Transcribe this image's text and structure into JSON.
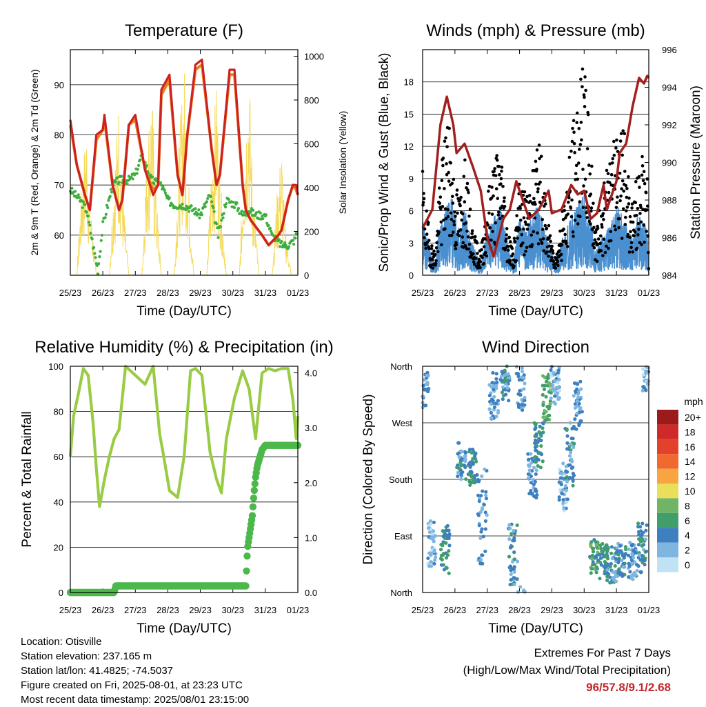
{
  "colors": {
    "temp_2m": "#cc2222",
    "temp_9m": "#ef7d1a",
    "dewpoint": "#3fae3f",
    "solar": "#f5da5a",
    "wind_sonic": "#4a90d0",
    "gust": "#000000",
    "pressure": "#a31f1f",
    "rh": "#99cc44",
    "precip": "#4cb84c",
    "grid": "#000000"
  },
  "time_ticks": [
    "25/23",
    "26/23",
    "27/23",
    "28/23",
    "29/23",
    "30/23",
    "31/23",
    "01/23"
  ],
  "chart_data": [
    {
      "id": "temperature",
      "type": "line",
      "title": "Temperature (F)",
      "xlabel": "Time (Day/UTC)",
      "ylabel_left": "2m & 9m T (Red, Orange) & 2m Td (Green)",
      "ylabel_right": "Solar Insolation (Yellow)",
      "x_ticks": [
        "25/23",
        "26/23",
        "27/23",
        "28/23",
        "29/23",
        "30/23",
        "31/23",
        "01/23"
      ],
      "x_range_days": [
        0,
        7
      ],
      "ylim": [
        52,
        97
      ],
      "yticks": [
        60,
        70,
        80,
        90
      ],
      "ylim_right": [
        0,
        1030
      ],
      "yticks_right": [
        0,
        200,
        400,
        600,
        800,
        1000
      ],
      "grid": true,
      "series": [
        {
          "name": "2m T",
          "days": [
            0.0,
            0.2,
            0.45,
            0.6,
            0.8,
            1.0,
            1.05,
            1.3,
            1.5,
            1.6,
            1.8,
            2.0,
            2.3,
            2.55,
            2.7,
            2.8,
            3.05,
            3.3,
            3.45,
            3.6,
            3.85,
            4.05,
            4.35,
            4.5,
            4.6,
            4.9,
            5.05,
            5.3,
            5.4,
            5.55,
            5.9,
            6.1,
            6.4,
            6.5,
            6.7,
            6.85,
            6.95,
            7.0
          ],
          "values": [
            83,
            74,
            68,
            65,
            80,
            81,
            84,
            70,
            65,
            67,
            82,
            84,
            73,
            68,
            70,
            89,
            92,
            72,
            68,
            80,
            94,
            95,
            77,
            70,
            72,
            93,
            93,
            70,
            65,
            63,
            60,
            58,
            60,
            61,
            67,
            70,
            70,
            68
          ]
        },
        {
          "name": "9m T",
          "days": [
            0.0,
            0.2,
            0.45,
            0.6,
            0.8,
            1.0,
            1.05,
            1.3,
            1.5,
            1.6,
            1.8,
            2.0,
            2.3,
            2.55,
            2.7,
            2.8,
            3.05,
            3.3,
            3.45,
            3.6,
            3.85,
            4.05,
            4.35,
            4.5,
            4.6,
            4.9,
            5.05,
            5.3,
            5.4,
            5.55,
            5.9,
            6.1,
            6.4,
            6.5,
            6.7,
            6.85,
            6.95,
            7.0
          ],
          "values": [
            82,
            74,
            68,
            65,
            79,
            81,
            83,
            70,
            65,
            67,
            82,
            83,
            73,
            69,
            70,
            88,
            91,
            72,
            68,
            80,
            93,
            94,
            77,
            70,
            72,
            92,
            92,
            70,
            65,
            63,
            60,
            58,
            60,
            61,
            67,
            70,
            69,
            68
          ]
        },
        {
          "name": "2m Td",
          "days": [
            0.0,
            0.3,
            0.5,
            0.7,
            0.85,
            1.0,
            1.3,
            1.5,
            1.8,
            2.0,
            2.2,
            2.5,
            2.8,
            3.0,
            3.2,
            3.5,
            3.8,
            4.0,
            4.3,
            4.55,
            4.8,
            5.1,
            5.3,
            5.5,
            5.7,
            6.0,
            6.2,
            6.5,
            6.7,
            6.9,
            7.0
          ],
          "values": [
            69,
            67,
            65,
            58,
            53,
            62,
            70,
            71,
            71,
            72,
            76,
            71,
            70,
            67,
            66,
            66,
            65,
            64,
            68,
            60,
            67,
            66,
            64,
            65,
            64,
            64,
            60,
            58,
            58,
            59,
            61
          ]
        },
        {
          "name": "Solar",
          "days": [
            0.0,
            0.2,
            0.35,
            0.5,
            0.6,
            0.8,
            0.95,
            1.2,
            1.35,
            1.5,
            1.6,
            1.8,
            1.95,
            2.2,
            2.35,
            2.5,
            2.6,
            2.8,
            2.95,
            3.2,
            3.35,
            3.5,
            3.6,
            3.8,
            3.95,
            4.2,
            4.35,
            4.5,
            4.6,
            4.8,
            4.95,
            5.2,
            5.35,
            5.5,
            5.6,
            5.8,
            5.95,
            6.2,
            6.35,
            6.5,
            6.6,
            6.8,
            6.95,
            7.0
          ],
          "values": [
            0,
            0,
            450,
            700,
            380,
            0,
            0,
            0,
            500,
            820,
            420,
            0,
            0,
            0,
            600,
            900,
            500,
            0,
            0,
            0,
            640,
            1000,
            560,
            0,
            0,
            0,
            560,
            900,
            500,
            0,
            0,
            0,
            620,
            980,
            480,
            0,
            0,
            0,
            360,
            600,
            260,
            0,
            0,
            0
          ]
        }
      ]
    },
    {
      "id": "winds",
      "type": "line",
      "title": "Winds (mph) & Pressure (mb)",
      "xlabel": "Time (Day/UTC)",
      "ylabel_left": "Sonic/Prop Wind & Gust (Blue, Black)",
      "ylabel_right": "Station Pressure (Maroon)",
      "x_ticks": [
        "25/23",
        "26/23",
        "27/23",
        "28/23",
        "29/23",
        "30/23",
        "31/23",
        "01/23"
      ],
      "x_range_days": [
        0,
        7
      ],
      "ylim": [
        0,
        21
      ],
      "yticks": [
        0,
        3,
        6,
        9,
        12,
        15,
        18
      ],
      "ylim_right": [
        984,
        996
      ],
      "yticks_right": [
        984,
        986,
        988,
        990,
        992,
        994,
        996
      ],
      "grid": true,
      "series": [
        {
          "name": "Wind",
          "days": [
            0.0,
            0.1,
            0.25,
            0.4,
            0.5,
            0.6,
            0.75,
            0.9,
            1.0,
            1.15,
            1.3,
            1.5,
            1.65,
            1.8,
            2.0,
            2.2,
            2.4,
            2.5,
            2.6,
            2.8,
            3.0,
            3.2,
            3.4,
            3.55,
            3.7,
            3.85,
            4.0,
            4.15,
            4.3,
            4.45,
            4.6,
            4.8,
            5.0,
            5.2,
            5.35,
            5.5,
            5.7,
            5.9,
            6.05,
            6.2,
            6.35,
            6.5,
            6.65,
            6.8,
            6.95,
            7.0
          ],
          "values": [
            5,
            4,
            2,
            1,
            4,
            5,
            6,
            7,
            5,
            4,
            6,
            3,
            2,
            1,
            4,
            5,
            6,
            5,
            3,
            1,
            5,
            4,
            5,
            6,
            5,
            3,
            2,
            1,
            3,
            4,
            5,
            6,
            7,
            5,
            2,
            3,
            4,
            5,
            6,
            5,
            4,
            3,
            5,
            5,
            4,
            0
          ]
        },
        {
          "name": "Gust",
          "days": [
            0.0,
            0.1,
            0.25,
            0.4,
            0.5,
            0.6,
            0.75,
            0.9,
            1.0,
            1.15,
            1.3,
            1.5,
            1.65,
            1.8,
            2.0,
            2.2,
            2.4,
            2.5,
            2.6,
            2.8,
            3.0,
            3.2,
            3.4,
            3.55,
            3.7,
            3.85,
            4.0,
            4.15,
            4.3,
            4.45,
            4.6,
            4.8,
            5.0,
            5.2,
            5.35,
            5.5,
            5.7,
            5.9,
            6.05,
            6.2,
            6.35,
            6.5,
            6.65,
            6.8,
            6.95,
            7.0
          ],
          "values": [
            9,
            6,
            3,
            2,
            7,
            10,
            14,
            11,
            8,
            7,
            10,
            5,
            3,
            2,
            7,
            10,
            12,
            9,
            5,
            2,
            8,
            7,
            9,
            12,
            10,
            5,
            3,
            2,
            5,
            8,
            12,
            16,
            18,
            12,
            4,
            6,
            9,
            11,
            15,
            13,
            10,
            6,
            9,
            11,
            9,
            0
          ]
        },
        {
          "name": "Pressure",
          "days": [
            0.0,
            0.3,
            0.55,
            0.75,
            0.95,
            1.05,
            1.3,
            1.55,
            1.8,
            2.0,
            2.2,
            2.5,
            2.7,
            2.9,
            3.1,
            3.3,
            3.6,
            3.9,
            4.0,
            4.3,
            4.6,
            4.8,
            5.0,
            5.2,
            5.4,
            5.6,
            5.7,
            6.0,
            6.1,
            6.3,
            6.5,
            6.7,
            6.85,
            6.95,
            7.0
          ],
          "values": [
            986.5,
            987.5,
            992.0,
            993.5,
            992.0,
            990.5,
            991.0,
            989.8,
            988.5,
            986.0,
            985.0,
            987.0,
            987.5,
            989.0,
            988.0,
            987.0,
            987.5,
            988.5,
            987.3,
            987.5,
            988.8,
            988.3,
            988.5,
            987.0,
            987.3,
            988.8,
            987.5,
            989.0,
            990.5,
            991.0,
            993.0,
            994.5,
            994.2,
            994.6,
            994.5
          ]
        }
      ]
    },
    {
      "id": "humidity",
      "type": "line",
      "title": "Relative Humidity (%) & Precipitation (in)",
      "xlabel": "Time (Day/UTC)",
      "ylabel_left": "Percent & Total Rainfall",
      "x_ticks": [
        "25/23",
        "26/23",
        "27/23",
        "28/23",
        "29/23",
        "30/23",
        "31/23",
        "01/23"
      ],
      "x_range_days": [
        0,
        7
      ],
      "ylim": [
        0,
        100
      ],
      "yticks": [
        0,
        20,
        40,
        60,
        80,
        100
      ],
      "ylim_right": [
        0.0,
        4.12
      ],
      "yticks_right": [
        "0.0",
        "1.0",
        "2.0",
        "3.0",
        "4.0"
      ],
      "grid": true,
      "series": [
        {
          "name": "RH",
          "days": [
            0.0,
            0.1,
            0.25,
            0.4,
            0.55,
            0.7,
            0.8,
            0.9,
            1.05,
            1.2,
            1.35,
            1.5,
            1.7,
            1.85,
            2.0,
            2.3,
            2.55,
            2.75,
            2.85,
            3.05,
            3.3,
            3.5,
            3.7,
            3.85,
            4.05,
            4.3,
            4.5,
            4.65,
            4.8,
            5.05,
            5.3,
            5.5,
            5.7,
            5.9,
            6.1,
            6.3,
            6.5,
            6.7,
            6.85,
            6.95,
            7.0
          ],
          "values": [
            60,
            78,
            88,
            99,
            96,
            75,
            55,
            38,
            50,
            60,
            68,
            72,
            100,
            98,
            96,
            92,
            100,
            70,
            62,
            45,
            42,
            60,
            98,
            99,
            96,
            62,
            50,
            44,
            68,
            86,
            98,
            90,
            68,
            97,
            99,
            98,
            99,
            99,
            85,
            68,
            78
          ]
        },
        {
          "name": "Precip",
          "days": [
            0.0,
            1.35,
            1.4,
            5.4,
            5.45,
            5.5,
            5.55,
            5.6,
            5.65,
            5.7,
            5.75,
            5.8,
            5.9,
            6.0,
            6.2,
            7.0
          ],
          "values": [
            0.0,
            0.0,
            0.12,
            0.12,
            0.8,
            1.0,
            1.2,
            1.4,
            1.8,
            2.1,
            2.3,
            2.4,
            2.6,
            2.68,
            2.68,
            2.68
          ]
        }
      ]
    },
    {
      "id": "direction",
      "type": "scatter",
      "title": "Wind Direction",
      "xlabel": "Time (Day/UTC)",
      "ylabel_left": "Direction (Colored By Speed)",
      "x_ticks": [
        "25/23",
        "26/23",
        "27/23",
        "28/23",
        "29/23",
        "30/23",
        "31/23",
        "01/23"
      ],
      "x_range_days": [
        0,
        7
      ],
      "ylim": [
        0,
        360
      ],
      "y_tick_labels": [
        "North",
        "East",
        "South",
        "West",
        "North"
      ],
      "y_tick_values": [
        0,
        90,
        180,
        270,
        360
      ],
      "grid": true,
      "legend": {
        "title": "mph",
        "placement": "right",
        "labels": [
          "20+",
          "18",
          "16",
          "14",
          "12",
          "10",
          "8",
          "6",
          "4",
          "2",
          "0"
        ],
        "colors": [
          "#9b1b1b",
          "#cf2a2a",
          "#e3412b",
          "#f06a2f",
          "#f7a441",
          "#e9df5b",
          "#70b565",
          "#3f9e6a",
          "#3d7fbf",
          "#7eb6e0",
          "#bfe2f5"
        ]
      },
      "clusters": [
        {
          "day": 0.05,
          "dir": 320,
          "spread": 30,
          "speed": 3
        },
        {
          "day": 0.3,
          "dir": 80,
          "spread": 40,
          "speed": 2
        },
        {
          "day": 0.7,
          "dir": 70,
          "spread": 40,
          "speed": 5
        },
        {
          "day": 1.2,
          "dir": 210,
          "spread": 30,
          "speed": 4
        },
        {
          "day": 1.55,
          "dir": 200,
          "spread": 30,
          "speed": 5
        },
        {
          "day": 1.85,
          "dir": 120,
          "spread": 80,
          "speed": 3
        },
        {
          "day": 2.2,
          "dir": 310,
          "spread": 40,
          "speed": 3
        },
        {
          "day": 2.55,
          "dir": 330,
          "spread": 30,
          "speed": 4
        },
        {
          "day": 2.8,
          "dir": 60,
          "spread": 50,
          "speed": 4
        },
        {
          "day": 3.05,
          "dir": 330,
          "spread": 40,
          "speed": 3
        },
        {
          "day": 3.4,
          "dir": 190,
          "spread": 40,
          "speed": 3
        },
        {
          "day": 3.6,
          "dir": 230,
          "spread": 40,
          "speed": 5
        },
        {
          "day": 3.85,
          "dir": 310,
          "spread": 40,
          "speed": 7
        },
        {
          "day": 4.1,
          "dir": 330,
          "spread": 30,
          "speed": 2
        },
        {
          "day": 4.35,
          "dir": 170,
          "spread": 40,
          "speed": 2
        },
        {
          "day": 4.55,
          "dir": 220,
          "spread": 50,
          "speed": 4
        },
        {
          "day": 4.8,
          "dir": 300,
          "spread": 40,
          "speed": 3
        },
        {
          "day": 5.3,
          "dir": 60,
          "spread": 30,
          "speed": 6
        },
        {
          "day": 5.6,
          "dir": 50,
          "spread": 30,
          "speed": 5
        },
        {
          "day": 5.85,
          "dir": 45,
          "spread": 30,
          "speed": 4
        },
        {
          "day": 6.15,
          "dir": 50,
          "spread": 30,
          "speed": 4
        },
        {
          "day": 6.5,
          "dir": 50,
          "spread": 30,
          "speed": 3
        },
        {
          "day": 6.8,
          "dir": 70,
          "spread": 40,
          "speed": 4
        },
        {
          "day": 6.95,
          "dir": 340,
          "spread": 20,
          "speed": 2
        }
      ]
    }
  ],
  "info": {
    "location": "Location: Otisville",
    "elevation": "Station elevation: 237.165 m",
    "latlon": "Station lat/lon: 41.4825; -74.5037",
    "created": "Figure created on Fri, 2025-08-01, at 23:23 UTC",
    "latest": "Most recent data timestamp: 2025/08/01 23:15:00"
  },
  "extremes": {
    "title": "Extremes For Past 7 Days",
    "subtitle": "(High/Low/Max Wind/Total Precipitation)",
    "values": "96/57.8/9.1/2.68"
  }
}
